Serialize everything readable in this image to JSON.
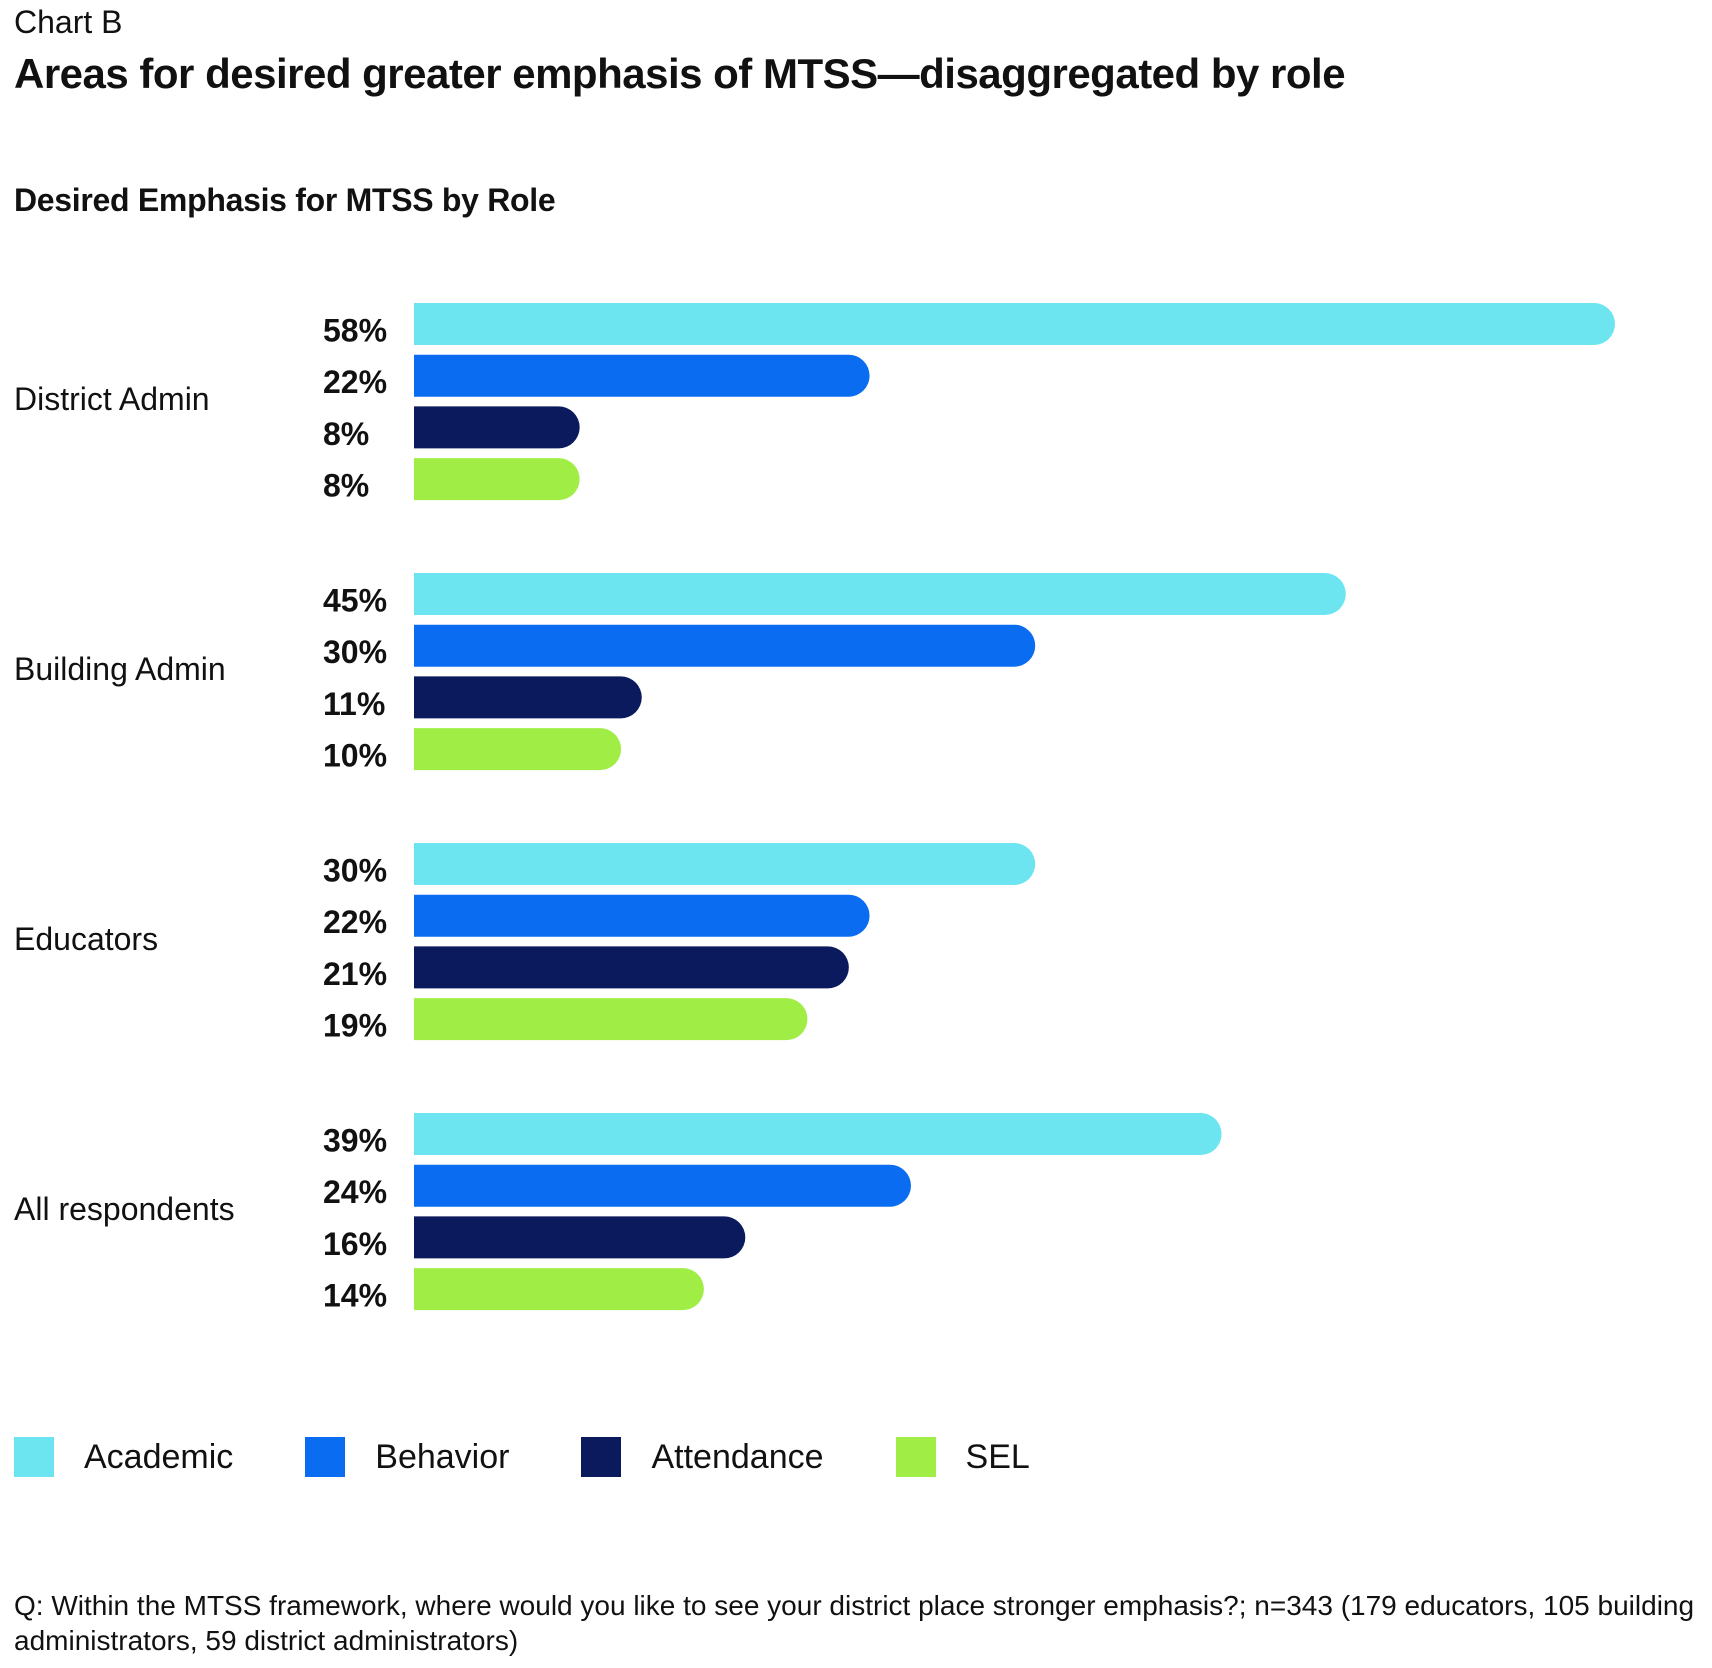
{
  "header": {
    "kicker": "Chart B",
    "title": "Areas for desired greater emphasis of MTSS—disaggregated by role",
    "subtitle": "Desired Emphasis for MTSS by Role"
  },
  "chart_data": {
    "type": "bar",
    "orientation": "horizontal",
    "title": "Desired Emphasis for MTSS by Role",
    "categories": [
      "District Admin",
      "Building Admin",
      "Educators",
      "All respondents"
    ],
    "series": [
      {
        "name": "Academic",
        "color": "#6ce5f0",
        "values": [
          58,
          45,
          30,
          39
        ],
        "labels": [
          "58%",
          "45%",
          "30%",
          "39%"
        ]
      },
      {
        "name": "Behavior",
        "color": "#0a6cf0",
        "values": [
          22,
          30,
          22,
          24
        ],
        "labels": [
          "22%",
          "30%",
          "22%",
          "24%"
        ]
      },
      {
        "name": "Attendance",
        "color": "#0a1a5c",
        "values": [
          8,
          11,
          21,
          16
        ],
        "labels": [
          "8%",
          "11%",
          "21%",
          "16%"
        ]
      },
      {
        "name": "SEL",
        "color": "#a0ee45",
        "values": [
          8,
          10,
          19,
          14
        ],
        "labels": [
          "8%",
          "10%",
          "19%",
          "14%"
        ]
      }
    ],
    "value_unit": "%",
    "xlim": [
      0,
      58
    ],
    "grid": false,
    "legend_position": "bottom-left"
  },
  "footnote": "Q: Within the MTSS framework, where would you like to see your district place stronger emphasis?; n=343 (179 educators, 105 building administrators, 59 district administrators)"
}
